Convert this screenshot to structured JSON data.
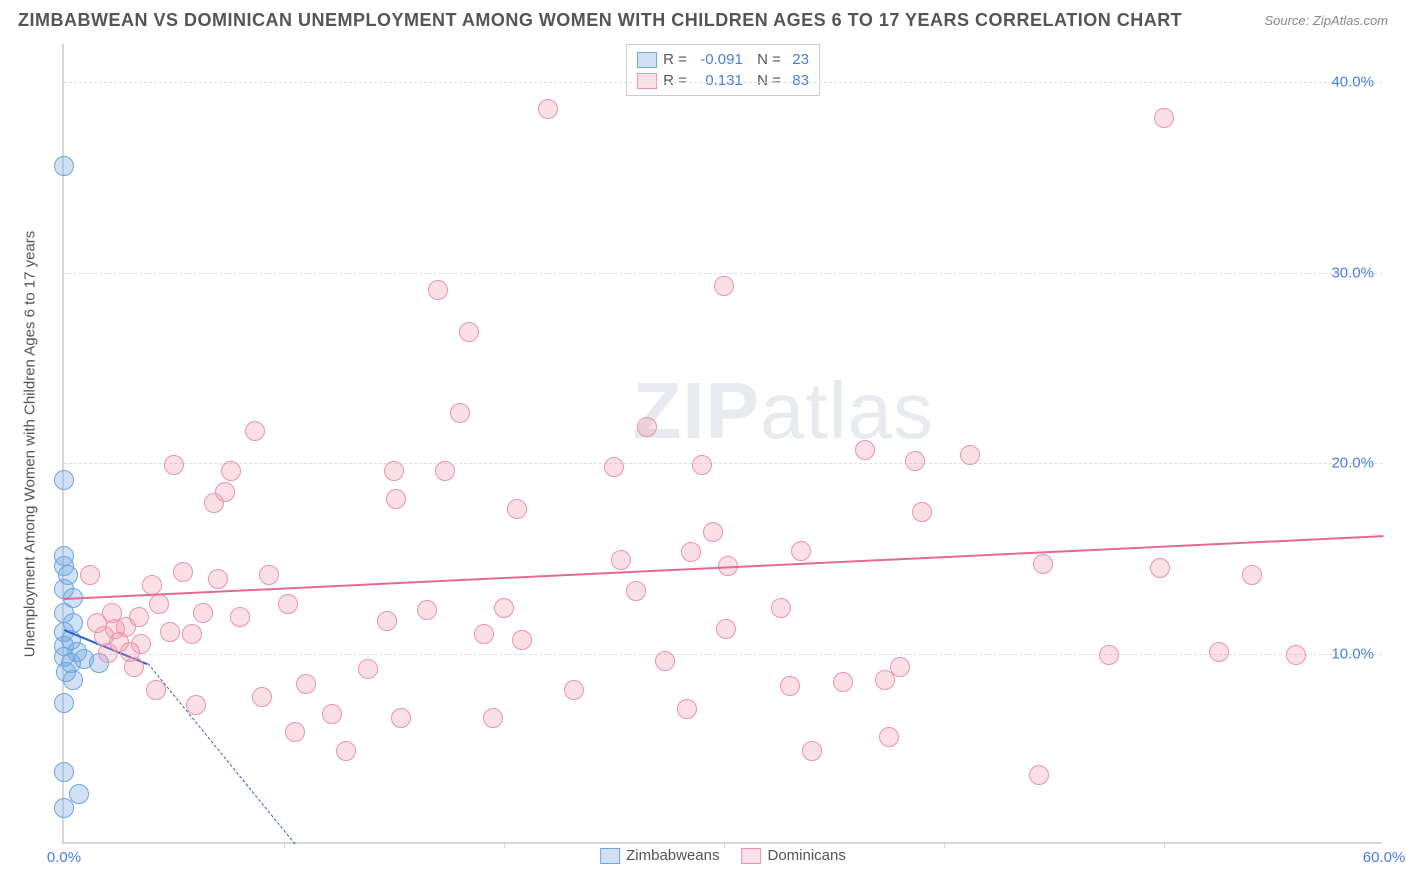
{
  "header": {
    "title": "ZIMBABWEAN VS DOMINICAN UNEMPLOYMENT AMONG WOMEN WITH CHILDREN AGES 6 TO 17 YEARS CORRELATION CHART",
    "source": "Source: ZipAtlas.com"
  },
  "watermark": {
    "bold": "ZIP",
    "light": "atlas"
  },
  "chart": {
    "type": "scatter",
    "y_axis_label": "Unemployment Among Women with Children Ages 6 to 17 years",
    "xlim": [
      0,
      60
    ],
    "ylim": [
      0,
      42
    ],
    "xticks": [
      0,
      60
    ],
    "xtick_labels": [
      "0.0%",
      "60.0%"
    ],
    "xminor_positions": [
      10,
      20,
      30,
      40,
      50
    ],
    "yticks": [
      10,
      20,
      30,
      40
    ],
    "ytick_labels": [
      "10.0%",
      "20.0%",
      "30.0%",
      "40.0%"
    ],
    "background_color": "#ffffff",
    "grid_color": "#e0e0e0",
    "axis_color": "#d8d8d8",
    "tick_label_color": "#4a7fd8",
    "label_fontsize": 15,
    "marker_size": 20,
    "series": [
      {
        "name": "Zimbabweans",
        "color_fill": "rgba(120,170,230,0.35)",
        "color_stroke": "#6fa6db",
        "r": "-0.091",
        "n": "23",
        "trend": {
          "x1": 0,
          "y1": 11.3,
          "x2": 3.8,
          "y2": 9.5,
          "color": "#2b63c9",
          "dash_ext_x2": 10.5,
          "dash_ext_y2": 0
        },
        "points": [
          [
            0.0,
            35.5
          ],
          [
            0.0,
            19.0
          ],
          [
            0.0,
            15.0
          ],
          [
            0.0,
            14.5
          ],
          [
            0.2,
            14.0
          ],
          [
            0.0,
            13.3
          ],
          [
            0.4,
            12.8
          ],
          [
            0.0,
            12.0
          ],
          [
            0.4,
            11.5
          ],
          [
            0.0,
            11.0
          ],
          [
            0.3,
            10.6
          ],
          [
            0.0,
            10.3
          ],
          [
            0.6,
            10.0
          ],
          [
            0.0,
            9.7
          ],
          [
            0.3,
            9.4
          ],
          [
            0.9,
            9.6
          ],
          [
            1.6,
            9.4
          ],
          [
            0.1,
            8.9
          ],
          [
            0.4,
            8.5
          ],
          [
            0.0,
            7.3
          ],
          [
            0.0,
            3.7
          ],
          [
            0.7,
            2.5
          ],
          [
            0.0,
            1.8
          ]
        ]
      },
      {
        "name": "Dominicans",
        "color_fill": "rgba(240,150,175,0.30)",
        "color_stroke": "#e995ae",
        "r": "0.131",
        "n": "83",
        "trend": {
          "x1": 0,
          "y1": 12.9,
          "x2": 60,
          "y2": 16.2,
          "color": "#e46a92"
        },
        "points": [
          [
            1.2,
            14.0
          ],
          [
            1.5,
            11.5
          ],
          [
            1.8,
            10.8
          ],
          [
            2.0,
            9.9
          ],
          [
            2.2,
            12.0
          ],
          [
            2.3,
            11.2
          ],
          [
            2.5,
            10.5
          ],
          [
            2.8,
            11.3
          ],
          [
            3.0,
            10.0
          ],
          [
            3.2,
            9.2
          ],
          [
            3.4,
            11.8
          ],
          [
            3.5,
            10.4
          ],
          [
            4.0,
            13.5
          ],
          [
            4.2,
            8.0
          ],
          [
            4.3,
            12.5
          ],
          [
            4.8,
            11.0
          ],
          [
            5.0,
            19.8
          ],
          [
            5.4,
            14.2
          ],
          [
            5.8,
            10.9
          ],
          [
            6.0,
            7.2
          ],
          [
            6.3,
            12.0
          ],
          [
            6.8,
            17.8
          ],
          [
            7.0,
            13.8
          ],
          [
            7.3,
            18.4
          ],
          [
            7.6,
            19.5
          ],
          [
            8.0,
            11.8
          ],
          [
            8.7,
            21.6
          ],
          [
            9.0,
            7.6
          ],
          [
            9.3,
            14.0
          ],
          [
            10.2,
            12.5
          ],
          [
            10.5,
            5.8
          ],
          [
            11.0,
            8.3
          ],
          [
            12.2,
            6.7
          ],
          [
            12.8,
            4.8
          ],
          [
            13.8,
            9.1
          ],
          [
            14.7,
            11.6
          ],
          [
            15.0,
            19.5
          ],
          [
            15.1,
            18.0
          ],
          [
            15.3,
            6.5
          ],
          [
            16.5,
            12.2
          ],
          [
            17.0,
            29.0
          ],
          [
            17.3,
            19.5
          ],
          [
            18.0,
            22.5
          ],
          [
            18.4,
            26.8
          ],
          [
            19.1,
            10.9
          ],
          [
            19.5,
            6.5
          ],
          [
            20.0,
            12.3
          ],
          [
            20.6,
            17.5
          ],
          [
            20.8,
            10.6
          ],
          [
            22.0,
            38.5
          ],
          [
            23.2,
            8.0
          ],
          [
            25.0,
            19.7
          ],
          [
            25.3,
            14.8
          ],
          [
            26.0,
            13.2
          ],
          [
            26.5,
            21.8
          ],
          [
            27.3,
            9.5
          ],
          [
            28.3,
            7.0
          ],
          [
            28.5,
            15.2
          ],
          [
            29.0,
            19.8
          ],
          [
            29.5,
            16.3
          ],
          [
            30.0,
            29.2
          ],
          [
            30.1,
            11.2
          ],
          [
            30.2,
            14.5
          ],
          [
            32.6,
            12.3
          ],
          [
            33.0,
            8.2
          ],
          [
            33.5,
            15.3
          ],
          [
            34.0,
            4.8
          ],
          [
            35.4,
            8.4
          ],
          [
            36.4,
            20.6
          ],
          [
            37.3,
            8.5
          ],
          [
            37.5,
            5.5
          ],
          [
            38.0,
            9.2
          ],
          [
            38.7,
            20.0
          ],
          [
            39.0,
            17.3
          ],
          [
            41.2,
            20.3
          ],
          [
            44.3,
            3.5
          ],
          [
            44.5,
            14.6
          ],
          [
            47.5,
            9.8
          ],
          [
            49.8,
            14.4
          ],
          [
            50.0,
            38.0
          ],
          [
            52.5,
            10.0
          ],
          [
            54.0,
            14.0
          ],
          [
            56.0,
            9.8
          ]
        ]
      }
    ],
    "legend_bottom": [
      {
        "swatch_fill": "rgba(120,170,230,0.35)",
        "swatch_stroke": "#6fa6db",
        "label": "Zimbabweans"
      },
      {
        "swatch_fill": "rgba(240,150,175,0.30)",
        "swatch_stroke": "#e995ae",
        "label": "Dominicans"
      }
    ]
  }
}
